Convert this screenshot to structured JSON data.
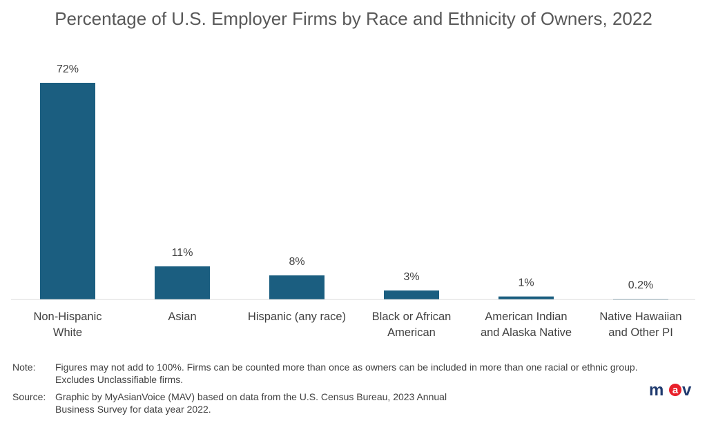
{
  "chart_data": {
    "type": "bar",
    "title": "Percentage of U.S. Employer Firms by Race and Ethnicity of Owners, 2022",
    "categories": [
      "Non-Hispanic\nWhite",
      "Asian",
      "Hispanic (any race)",
      "Black or African\nAmerican",
      "American Indian\nand Alaska Native",
      "Native Hawaiian\nand Other PI"
    ],
    "values": [
      72,
      11,
      8,
      3,
      1,
      0.2
    ],
    "data_labels": [
      "72%",
      "11%",
      "8%",
      "3%",
      "1%",
      "0.2%"
    ],
    "xlabel": "",
    "ylabel": "",
    "ylim": [
      0,
      72
    ],
    "grid": false,
    "bar_color": "#1b5e80"
  },
  "notes": {
    "note_label": "Note:",
    "note_text": "Figures may not add  to 100%. Firms can be counted more than once as owners can be included  in more than one racial or ethnic group.  Excludes Unclassifiable firms.",
    "source_label": "Source:",
    "source_text": "Graphic by MyAsianVoice (MAV) based on data from the U.S. Census Bureau, 2023 Annual Business Survey for data year 2022."
  },
  "logo": {
    "text": "mav",
    "text_color": "#1f3a6e",
    "accent_color": "#e8202a"
  }
}
